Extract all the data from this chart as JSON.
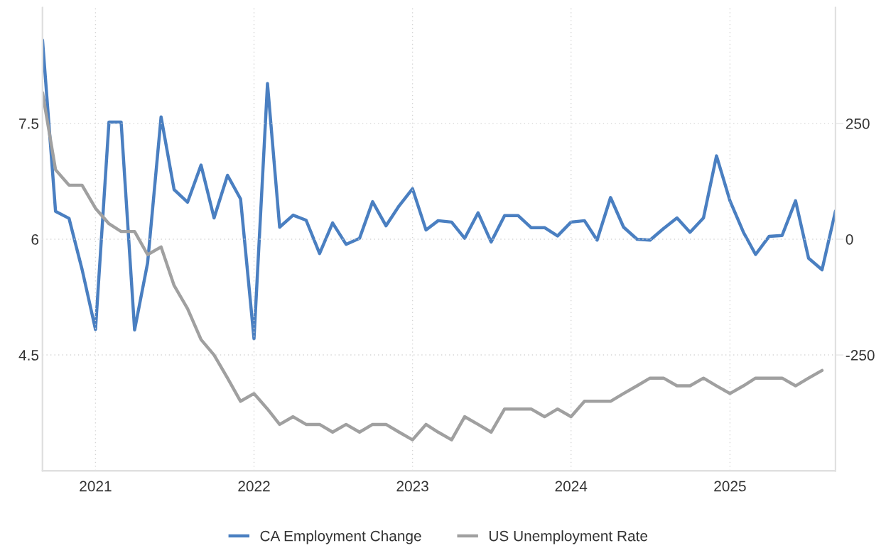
{
  "chart_data": {
    "type": "line",
    "x": [
      "2020-09",
      "2020-10",
      "2020-11",
      "2020-12",
      "2021-01",
      "2021-02",
      "2021-03",
      "2021-04",
      "2021-05",
      "2021-06",
      "2021-07",
      "2021-08",
      "2021-09",
      "2021-10",
      "2021-11",
      "2021-12",
      "2022-01",
      "2022-02",
      "2022-03",
      "2022-04",
      "2022-05",
      "2022-06",
      "2022-07",
      "2022-08",
      "2022-09",
      "2022-10",
      "2022-11",
      "2022-12",
      "2023-01",
      "2023-02",
      "2023-03",
      "2023-04",
      "2023-05",
      "2023-06",
      "2023-07",
      "2023-08",
      "2023-09",
      "2023-10",
      "2023-11",
      "2023-12",
      "2024-01",
      "2024-02",
      "2024-03",
      "2024-04",
      "2024-05",
      "2024-06",
      "2024-07",
      "2024-08",
      "2024-09",
      "2024-10",
      "2024-11",
      "2024-12",
      "2025-01",
      "2025-02",
      "2025-03",
      "2025-04",
      "2025-05",
      "2025-06",
      "2025-07",
      "2025-08",
      "2025-09"
    ],
    "series": [
      {
        "name": "CA Employment Change",
        "color": "#4a7fc1",
        "axis": "y2",
        "values": [
          430,
          60,
          45,
          -65,
          -195,
          253,
          253,
          -196,
          -51,
          264,
          107,
          80,
          160,
          46,
          138,
          87,
          -215,
          336,
          26,
          52,
          41,
          -31,
          35,
          -11,
          2,
          81,
          29,
          72,
          109,
          20,
          40,
          37,
          2,
          57,
          -6,
          51,
          51,
          25,
          25,
          7,
          37,
          40,
          -2,
          90,
          26,
          0,
          -2,
          23,
          46,
          15,
          46,
          180,
          83,
          15,
          -33,
          6,
          8,
          83,
          -41,
          -66,
          61
        ]
      },
      {
        "name": "US Unemployment Rate",
        "color": "#a0a0a0",
        "values": [
          7.9,
          6.9,
          6.7,
          6.7,
          6.4,
          6.2,
          6.1,
          6.1,
          5.8,
          5.9,
          5.4,
          5.1,
          4.7,
          4.5,
          4.2,
          3.9,
          4.0,
          3.8,
          3.6,
          3.7,
          3.6,
          3.6,
          3.5,
          3.6,
          3.5,
          3.6,
          3.6,
          3.5,
          3.4,
          3.6,
          3.5,
          3.4,
          3.7,
          3.6,
          3.5,
          3.8,
          3.8,
          3.8,
          3.7,
          3.8,
          3.7,
          3.9,
          3.9,
          3.9,
          4.0,
          4.1,
          4.2,
          4.2,
          4.1,
          4.1,
          4.2,
          4.1,
          4.0,
          4.1,
          4.2,
          4.2,
          4.2,
          4.1,
          4.2,
          4.3,
          null
        ]
      }
    ],
    "xlim": [
      "2020-09",
      "2025-09"
    ],
    "xticks": [
      {
        "value": "2021-01",
        "label": "2021"
      },
      {
        "value": "2022-01",
        "label": "2022"
      },
      {
        "value": "2023-01",
        "label": "2023"
      },
      {
        "value": "2024-01",
        "label": "2024"
      },
      {
        "value": "2025-01",
        "label": "2025"
      }
    ],
    "ylim": [
      3.0,
      9.0
    ],
    "yticks": [
      4.5,
      6,
      7.5
    ],
    "y2lim": [
      -500,
      500
    ],
    "y2ticks": [
      -250,
      0,
      250
    ],
    "grid": true,
    "legend": "bottom",
    "marker": "none",
    "line_style": "solid"
  }
}
